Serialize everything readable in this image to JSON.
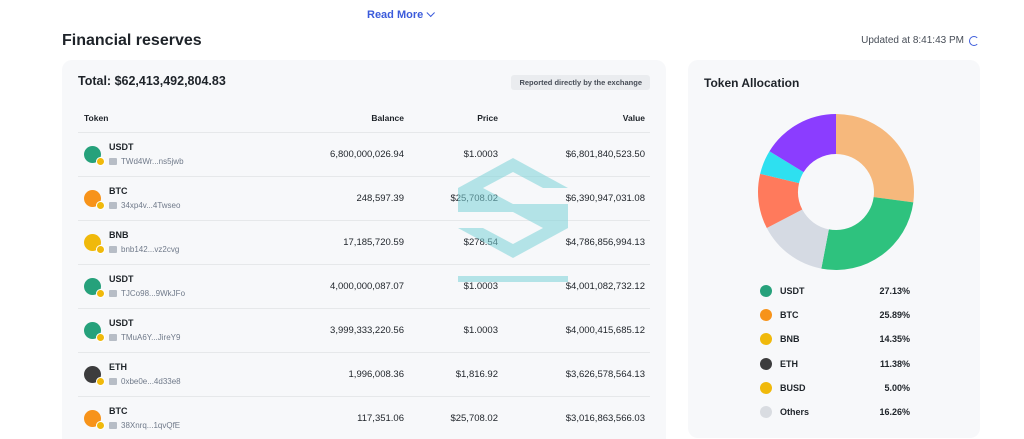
{
  "read_more": "Read More",
  "section_title": "Financial reserves",
  "updated": "Updated at 8:41:43 PM",
  "table": {
    "total": "Total: $62,413,492,804.83",
    "reported": "Reported directly by the exchange",
    "headers": {
      "token": "Token",
      "balance": "Balance",
      "price": "Price",
      "value": "Value"
    },
    "rows": [
      {
        "name": "USDT",
        "addr": "TWd4Wr...ns5jwb",
        "balance": "6,800,000,026.94",
        "price": "$1.0003",
        "value": "$6,801,840,523.50",
        "icon": "usdt-icon",
        "color": "#26a17b"
      },
      {
        "name": "BTC",
        "addr": "34xp4v...4Twseo",
        "balance": "248,597.39",
        "price": "$25,708.02",
        "value": "$6,390,947,031.08",
        "icon": "btc-icon",
        "color": "#f7931a"
      },
      {
        "name": "BNB",
        "addr": "bnb142...vz2cvg",
        "balance": "17,185,720.59",
        "price": "$278.54",
        "value": "$4,786,856,994.13",
        "icon": "bnb-icon",
        "color": "#f0b90b"
      },
      {
        "name": "USDT",
        "addr": "TJCo98...9WkJFo",
        "balance": "4,000,000,087.07",
        "price": "$1.0003",
        "value": "$4,001,082,732.12",
        "icon": "usdt-icon",
        "color": "#26a17b"
      },
      {
        "name": "USDT",
        "addr": "TMuA6Y...JireY9",
        "balance": "3,999,333,220.56",
        "price": "$1.0003",
        "value": "$4,000,415,685.12",
        "icon": "usdt-icon",
        "color": "#26a17b"
      },
      {
        "name": "ETH",
        "addr": "0xbe0e...4d33e8",
        "balance": "1,996,008.36",
        "price": "$1,816.92",
        "value": "$3,626,578,564.13",
        "icon": "eth-icon",
        "color": "#3c3c3d"
      },
      {
        "name": "BTC",
        "addr": "38Xnrq...1qvQfE",
        "balance": "117,351.06",
        "price": "$25,708.02",
        "value": "$3,016,863,566.03",
        "icon": "btc-icon",
        "color": "#f7931a"
      }
    ]
  },
  "allocation": {
    "title": "Token Allocation",
    "legend": [
      {
        "name": "USDT",
        "pct": "27.13%",
        "icon": "usdt-icon",
        "color": "#26a17b"
      },
      {
        "name": "BTC",
        "pct": "25.89%",
        "icon": "btc-icon",
        "color": "#f7931a"
      },
      {
        "name": "BNB",
        "pct": "14.35%",
        "icon": "bnb-icon",
        "color": "#f0b90b"
      },
      {
        "name": "ETH",
        "pct": "11.38%",
        "icon": "eth-icon",
        "color": "#3c3c3d"
      },
      {
        "name": "BUSD",
        "pct": "5.00%",
        "icon": "busd-icon",
        "color": "#f0b90b"
      },
      {
        "name": "Others",
        "pct": "16.26%",
        "icon": "others-icon",
        "color": "#d9dce1"
      }
    ]
  },
  "chart_data": {
    "type": "pie",
    "categories": [
      "USDT",
      "BTC",
      "BNB",
      "ETH",
      "BUSD",
      "Others"
    ],
    "values": [
      27.13,
      25.89,
      14.35,
      11.38,
      5.0,
      16.26
    ],
    "colors": [
      "#f6b87c",
      "#2ec27e",
      "#d5dae3",
      "#ff7a5c",
      "#2ee0f0",
      "#8b3dff"
    ],
    "title": "Token Allocation",
    "donut": true
  }
}
